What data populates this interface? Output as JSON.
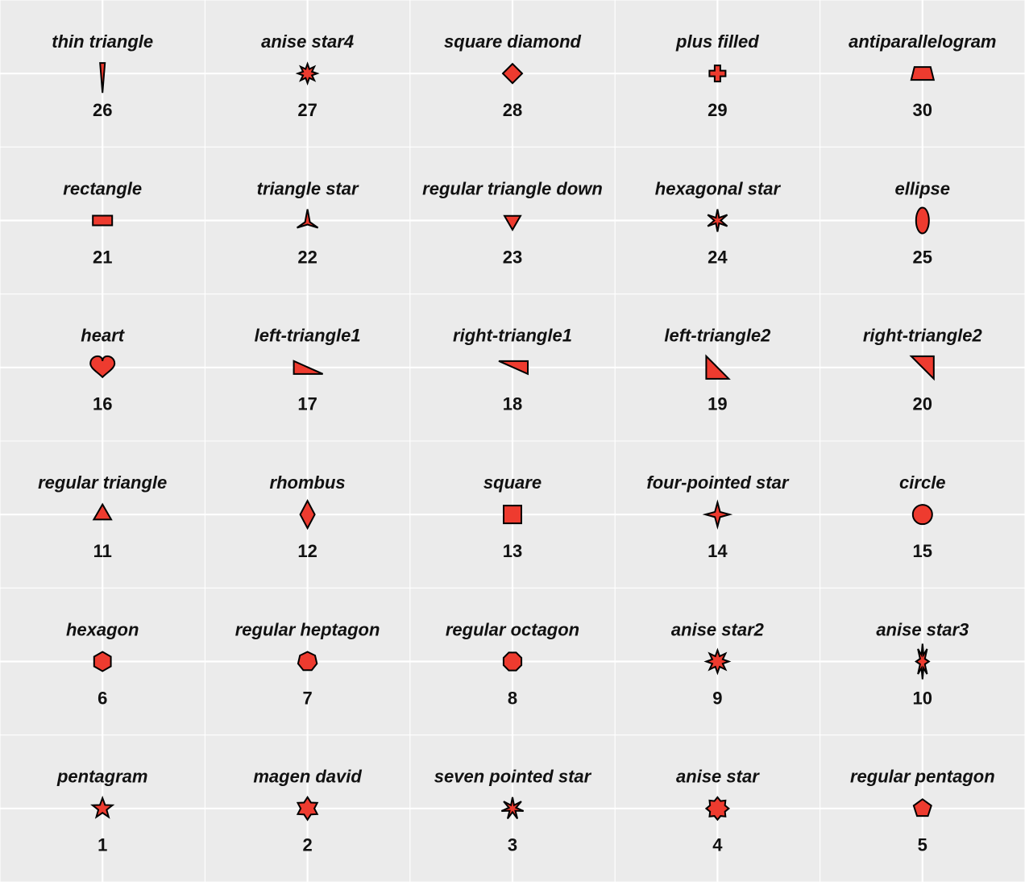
{
  "chart_data": {
    "type": "scatter",
    "title": "",
    "xlabel": "",
    "ylabel": "",
    "xlim": [
      0.5,
      5.5
    ],
    "ylim": [
      0.5,
      6.5
    ],
    "grid": true,
    "legend": "none",
    "colors": {
      "fill": "#EE3B2F",
      "stroke": "#000000",
      "background": "#EBEBEB",
      "grid": "#FFFFFF"
    },
    "points": [
      {
        "id": "26",
        "name": "thin triangle",
        "shape": "thin-triangle",
        "x": 1,
        "y": 6
      },
      {
        "id": "27",
        "name": "anise star4",
        "shape": "anise-star4",
        "x": 2,
        "y": 6
      },
      {
        "id": "28",
        "name": "square diamond",
        "shape": "square-diamond",
        "x": 3,
        "y": 6
      },
      {
        "id": "29",
        "name": "plus filled",
        "shape": "plus-filled",
        "x": 4,
        "y": 6
      },
      {
        "id": "30",
        "name": "antiparallelogram",
        "shape": "antiparallelogram",
        "x": 5,
        "y": 6
      },
      {
        "id": "21",
        "name": "rectangle",
        "shape": "rectangle",
        "x": 1,
        "y": 5
      },
      {
        "id": "22",
        "name": "triangle star",
        "shape": "triangle-star",
        "x": 2,
        "y": 5
      },
      {
        "id": "23",
        "name": "regular triangle down",
        "shape": "regular-triangle-down",
        "x": 3,
        "y": 5
      },
      {
        "id": "24",
        "name": "hexagonal star",
        "shape": "hexagonal-star",
        "x": 4,
        "y": 5
      },
      {
        "id": "25",
        "name": "ellipse",
        "shape": "ellipse",
        "x": 5,
        "y": 5
      },
      {
        "id": "16",
        "name": "heart",
        "shape": "heart",
        "x": 1,
        "y": 4
      },
      {
        "id": "17",
        "name": "left-triangle1",
        "shape": "left-triangle1",
        "x": 2,
        "y": 4
      },
      {
        "id": "18",
        "name": "right-triangle1",
        "shape": "right-triangle1",
        "x": 3,
        "y": 4
      },
      {
        "id": "19",
        "name": "left-triangle2",
        "shape": "left-triangle2",
        "x": 4,
        "y": 4
      },
      {
        "id": "20",
        "name": "right-triangle2",
        "shape": "right-triangle2",
        "x": 5,
        "y": 4
      },
      {
        "id": "11",
        "name": "regular triangle",
        "shape": "regular-triangle",
        "x": 1,
        "y": 3
      },
      {
        "id": "12",
        "name": "rhombus",
        "shape": "rhombus",
        "x": 2,
        "y": 3
      },
      {
        "id": "13",
        "name": "square",
        "shape": "square",
        "x": 3,
        "y": 3
      },
      {
        "id": "14",
        "name": "four-pointed star",
        "shape": "four-pointed-star",
        "x": 4,
        "y": 3
      },
      {
        "id": "15",
        "name": "circle",
        "shape": "circle",
        "x": 5,
        "y": 3
      },
      {
        "id": "6",
        "name": "hexagon",
        "shape": "hexagon",
        "x": 1,
        "y": 2
      },
      {
        "id": "7",
        "name": "regular heptagon",
        "shape": "regular-heptagon",
        "x": 2,
        "y": 2
      },
      {
        "id": "8",
        "name": "regular octagon",
        "shape": "regular-octagon",
        "x": 3,
        "y": 2
      },
      {
        "id": "9",
        "name": "anise star2",
        "shape": "anise-star2",
        "x": 4,
        "y": 2
      },
      {
        "id": "10",
        "name": "anise star3",
        "shape": "anise-star3",
        "x": 5,
        "y": 2
      },
      {
        "id": "1",
        "name": "pentagram",
        "shape": "pentagram",
        "x": 1,
        "y": 1
      },
      {
        "id": "2",
        "name": "magen david",
        "shape": "magen-david",
        "x": 2,
        "y": 1
      },
      {
        "id": "3",
        "name": "seven pointed star",
        "shape": "seven-pointed-star",
        "x": 3,
        "y": 1
      },
      {
        "id": "4",
        "name": "anise star",
        "shape": "anise-star",
        "x": 4,
        "y": 1
      },
      {
        "id": "5",
        "name": "regular pentagon",
        "shape": "regular-pentagon",
        "x": 5,
        "y": 1
      }
    ]
  }
}
